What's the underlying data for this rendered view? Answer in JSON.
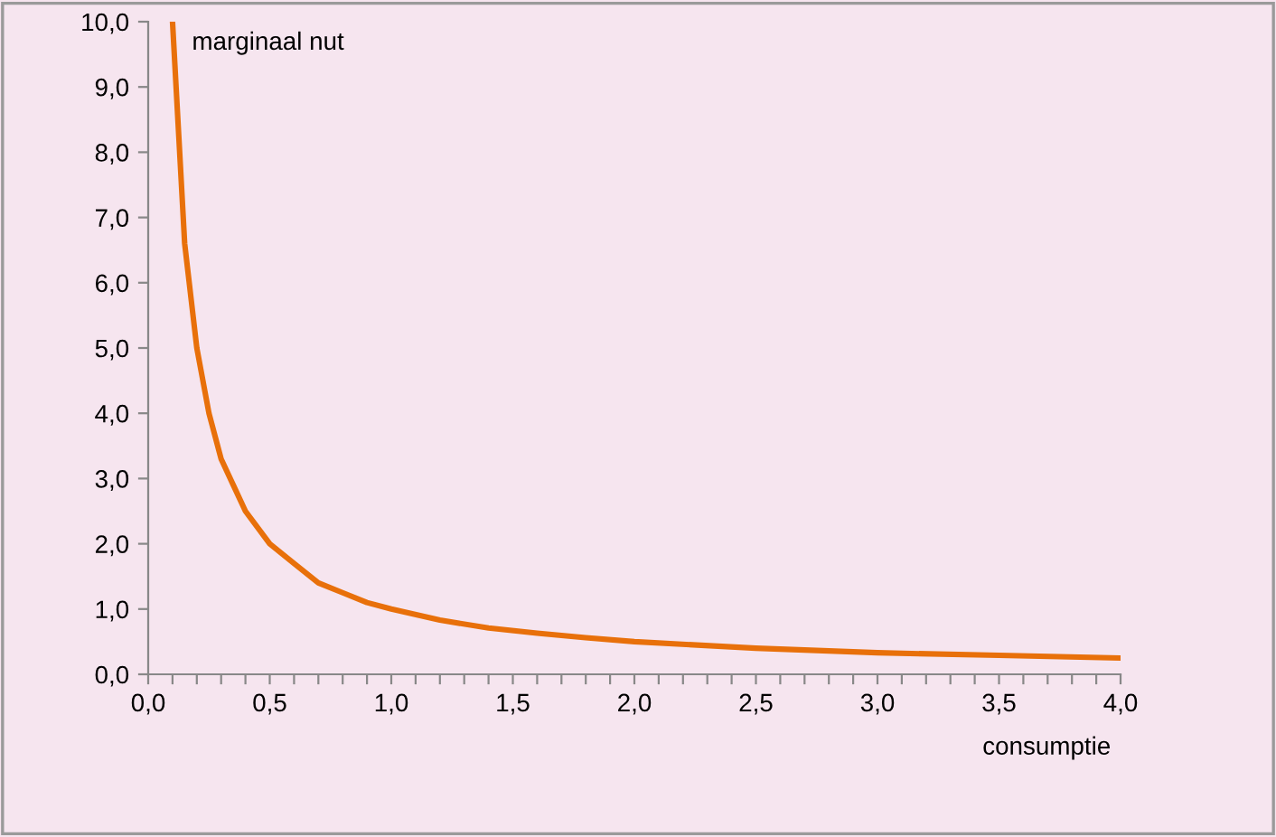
{
  "chart_data": {
    "type": "line",
    "ylabel": "marginaal nut",
    "xlabel": "consumptie",
    "x": [
      0.1,
      0.15,
      0.2,
      0.25,
      0.3,
      0.35,
      0.4,
      0.5,
      0.6,
      0.7,
      0.8,
      0.9,
      1.0,
      1.2,
      1.4,
      1.6,
      1.8,
      2.0,
      2.5,
      3.0,
      3.5,
      4.0
    ],
    "series": [
      {
        "color": "#e8700a",
        "values": [
          10,
          6.6,
          5.0,
          4.0,
          3.3,
          2.9,
          2.5,
          2.0,
          1.7,
          1.4,
          1.25,
          1.1,
          1.0,
          0.83,
          0.71,
          0.63,
          0.56,
          0.5,
          0.4,
          0.33,
          0.29,
          0.25
        ]
      }
    ],
    "xlim": [
      0,
      4
    ],
    "ylim": [
      0,
      10
    ],
    "xticks": [
      {
        "value": 0,
        "label": "0,0"
      },
      {
        "value": 0.1,
        "label": null
      },
      {
        "value": 0.2,
        "label": null
      },
      {
        "value": 0.3,
        "label": null
      },
      {
        "value": 0.4,
        "label": null
      },
      {
        "value": 0.5,
        "label": "0,5"
      },
      {
        "value": 0.6,
        "label": null
      },
      {
        "value": 0.7,
        "label": null
      },
      {
        "value": 0.8,
        "label": null
      },
      {
        "value": 0.9,
        "label": null
      },
      {
        "value": 1.0,
        "label": "1,0"
      },
      {
        "value": 1.1,
        "label": null
      },
      {
        "value": 1.2,
        "label": null
      },
      {
        "value": 1.3,
        "label": null
      },
      {
        "value": 1.4,
        "label": null
      },
      {
        "value": 1.5,
        "label": "1,5"
      },
      {
        "value": 1.6,
        "label": null
      },
      {
        "value": 1.7,
        "label": null
      },
      {
        "value": 1.8,
        "label": null
      },
      {
        "value": 1.9,
        "label": null
      },
      {
        "value": 2.0,
        "label": "2,0"
      },
      {
        "value": 2.1,
        "label": null
      },
      {
        "value": 2.2,
        "label": null
      },
      {
        "value": 2.3,
        "label": null
      },
      {
        "value": 2.4,
        "label": null
      },
      {
        "value": 2.5,
        "label": "2,5"
      },
      {
        "value": 2.6,
        "label": null
      },
      {
        "value": 2.7,
        "label": null
      },
      {
        "value": 2.8,
        "label": null
      },
      {
        "value": 2.9,
        "label": null
      },
      {
        "value": 3.0,
        "label": "3,0"
      },
      {
        "value": 3.1,
        "label": null
      },
      {
        "value": 3.2,
        "label": null
      },
      {
        "value": 3.3,
        "label": null
      },
      {
        "value": 3.4,
        "label": null
      },
      {
        "value": 3.5,
        "label": "3,5"
      },
      {
        "value": 3.6,
        "label": null
      },
      {
        "value": 3.7,
        "label": null
      },
      {
        "value": 3.8,
        "label": null
      },
      {
        "value": 3.9,
        "label": null
      },
      {
        "value": 4.0,
        "label": "4,0"
      }
    ],
    "yticks": [
      {
        "value": 0,
        "label": "0,0"
      },
      {
        "value": 1,
        "label": "1,0"
      },
      {
        "value": 2,
        "label": "2,0"
      },
      {
        "value": 3,
        "label": "3,0"
      },
      {
        "value": 4,
        "label": "4,0"
      },
      {
        "value": 5,
        "label": "5,0"
      },
      {
        "value": 6,
        "label": "6,0"
      },
      {
        "value": 7,
        "label": "7,0"
      },
      {
        "value": 8,
        "label": "8,0"
      },
      {
        "value": 9,
        "label": "9,0"
      },
      {
        "value": 10,
        "label": "10,0"
      }
    ],
    "grid": false,
    "legend": false,
    "marker": "none",
    "line_style": "solid"
  }
}
